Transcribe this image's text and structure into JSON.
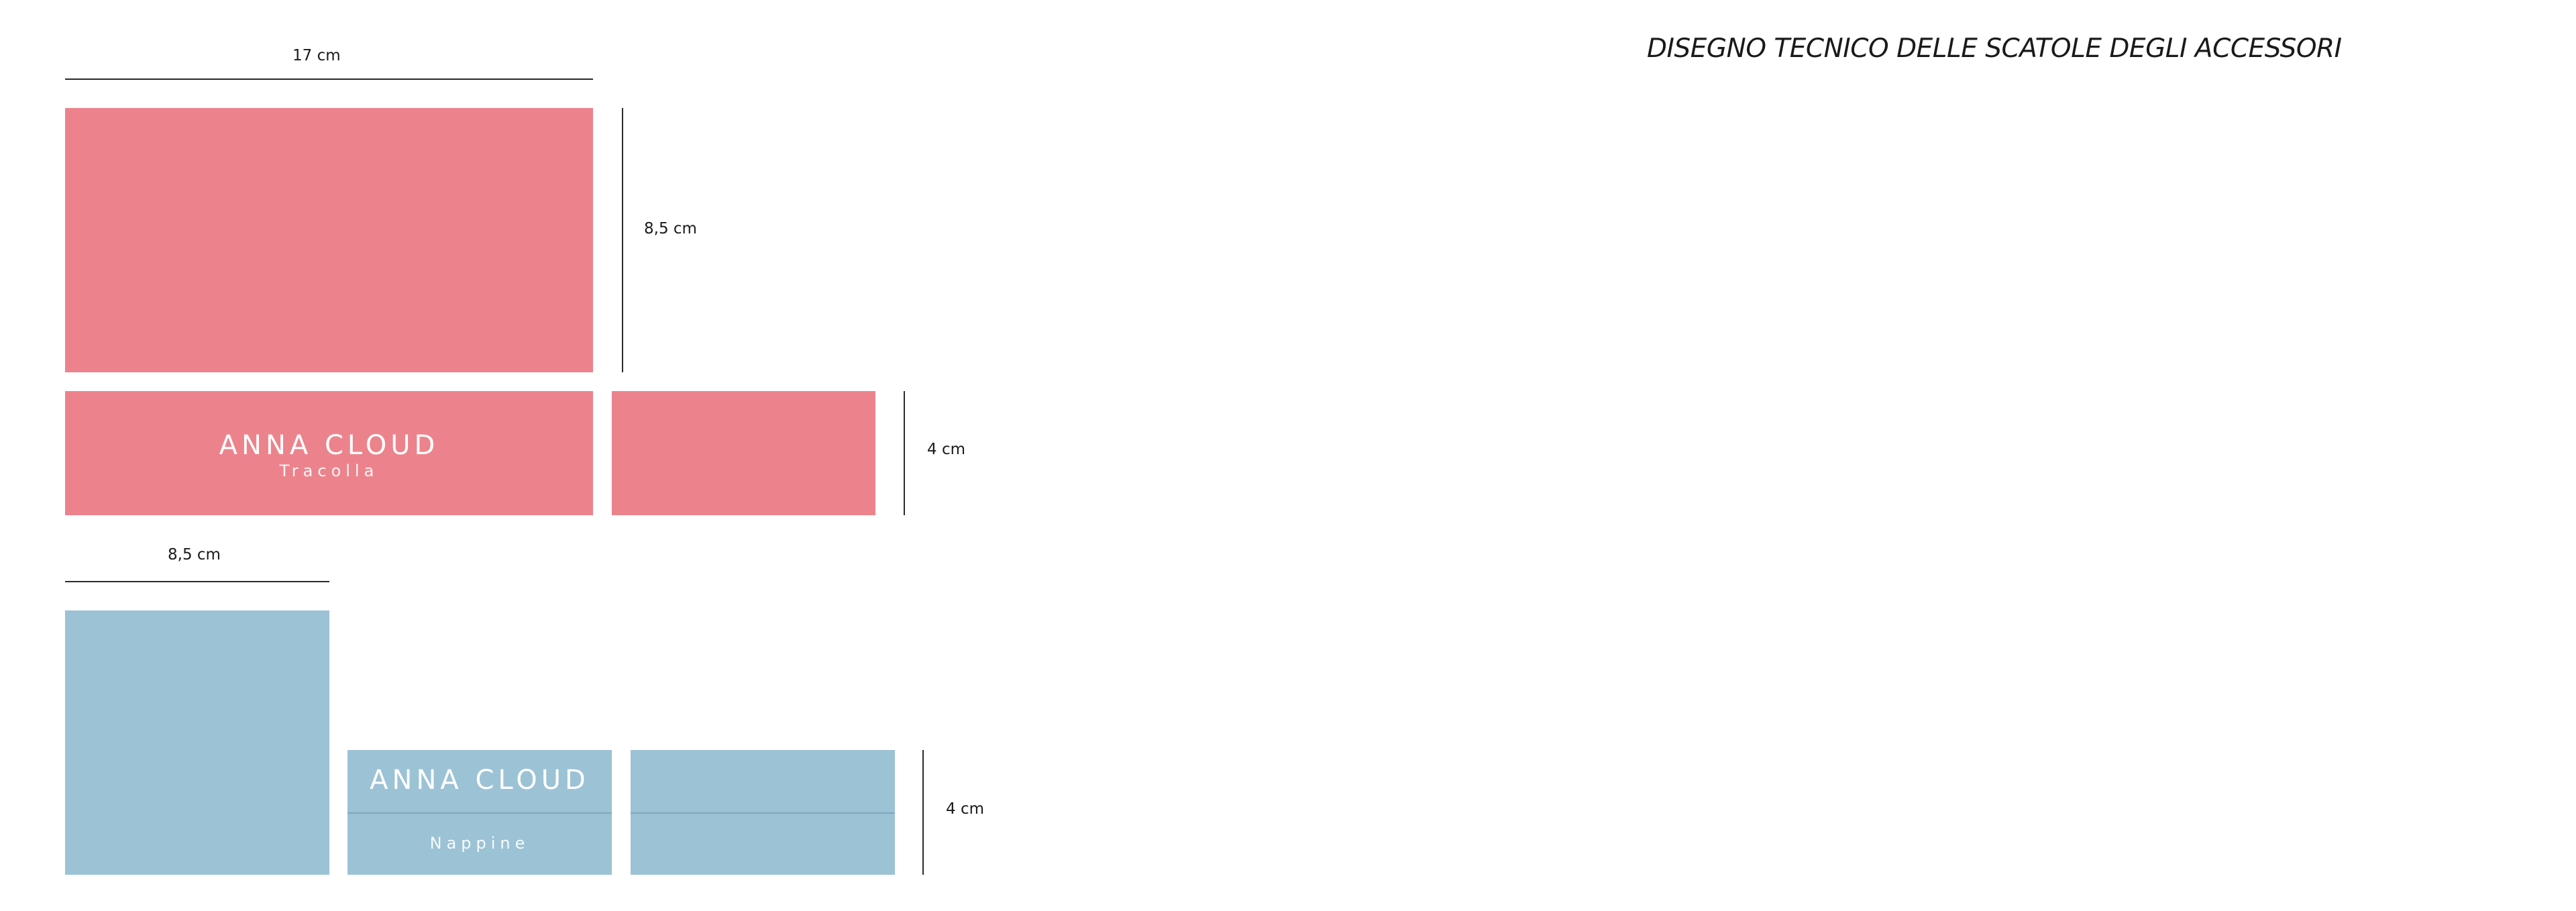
{
  "title": "DISEGNO TECNICO DELLE SCATOLE DEGLI ACCESSORI",
  "pink_box": {
    "color": "#ec838c",
    "width_label": "17 cm",
    "height_label": "8,5 cm",
    "depth_label": "4 cm",
    "brand": "ANNA CLOUD",
    "product": "Tracolla"
  },
  "blue_box": {
    "color": "#9cc2d5",
    "width_label": "8,5 cm",
    "depth_label": "4 cm",
    "brand": "ANNA CLOUD",
    "product": "Nappine"
  }
}
